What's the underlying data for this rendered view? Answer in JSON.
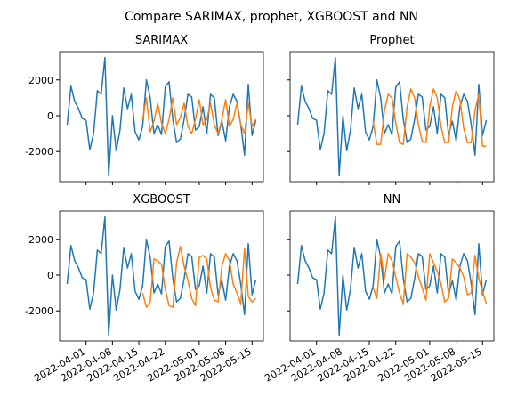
{
  "title": "Compare SARIMAX, prophet, XGBOOST and NN",
  "chart_data": [
    {
      "type": "line",
      "title": "SARIMAX",
      "x": [
        "2022-03-27",
        "2022-03-28",
        "2022-03-29",
        "2022-03-30",
        "2022-03-31",
        "2022-04-01",
        "2022-04-02",
        "2022-04-03",
        "2022-04-04",
        "2022-04-05",
        "2022-04-06",
        "2022-04-07",
        "2022-04-08",
        "2022-04-09",
        "2022-04-10",
        "2022-04-11",
        "2022-04-12",
        "2022-04-13",
        "2022-04-14",
        "2022-04-15",
        "2022-04-16",
        "2022-04-17",
        "2022-04-18",
        "2022-04-19",
        "2022-04-20",
        "2022-04-21",
        "2022-04-22",
        "2022-04-23",
        "2022-04-24",
        "2022-04-25",
        "2022-04-26",
        "2022-04-27",
        "2022-04-28",
        "2022-04-29",
        "2022-04-30",
        "2022-05-01",
        "2022-05-02",
        "2022-05-03",
        "2022-05-04",
        "2022-05-05",
        "2022-05-06",
        "2022-05-07",
        "2022-05-08",
        "2022-05-09",
        "2022-05-10",
        "2022-05-11",
        "2022-05-12",
        "2022-05-13",
        "2022-05-14",
        "2022-05-15",
        "2022-05-16"
      ],
      "series": [
        {
          "color": "#1f77b4",
          "values": [
            -500,
            1650,
            800,
            400,
            -150,
            -250,
            -1900,
            -1000,
            1400,
            1200,
            3250,
            -3350,
            0,
            -1950,
            -800,
            1550,
            400,
            1200,
            -900,
            -1350,
            -600,
            2000,
            1000,
            -1000,
            -500,
            -1050,
            1600,
            1900,
            -200,
            -1500,
            -1300,
            -200,
            1200,
            1050,
            -800,
            -600,
            500,
            -1000,
            1200,
            1000,
            -1100,
            -300,
            -1400,
            500,
            1200,
            800,
            -500,
            -2200,
            1750,
            -1100,
            -250
          ]
        },
        {
          "color": "#ff7f0e",
          "values": [
            null,
            null,
            null,
            null,
            null,
            null,
            null,
            null,
            null,
            null,
            null,
            null,
            null,
            null,
            null,
            null,
            null,
            null,
            null,
            null,
            -200,
            1000,
            -900,
            -300,
            700,
            -400,
            -1000,
            -200,
            1000,
            -500,
            -100,
            700,
            -600,
            -1000,
            -200,
            900,
            -500,
            -200,
            700,
            -500,
            -1000,
            -200,
            900,
            -600,
            -200,
            700,
            -500,
            -1000,
            700,
            -600,
            -200
          ]
        }
      ],
      "xlim": [
        "2022-03-25",
        "2022-05-18"
      ],
      "xticks": [
        "2022-04-01",
        "2022-04-08",
        "2022-04-15",
        "2022-04-22",
        "2022-05-01",
        "2022-05-08",
        "2022-05-15"
      ],
      "ylim": [
        -3680,
        3580
      ],
      "yticks": [
        -2000,
        0,
        2000
      ]
    },
    {
      "type": "line",
      "title": "Prophet",
      "x": [
        "2022-03-27",
        "2022-03-28",
        "2022-03-29",
        "2022-03-30",
        "2022-03-31",
        "2022-04-01",
        "2022-04-02",
        "2022-04-03",
        "2022-04-04",
        "2022-04-05",
        "2022-04-06",
        "2022-04-07",
        "2022-04-08",
        "2022-04-09",
        "2022-04-10",
        "2022-04-11",
        "2022-04-12",
        "2022-04-13",
        "2022-04-14",
        "2022-04-15",
        "2022-04-16",
        "2022-04-17",
        "2022-04-18",
        "2022-04-19",
        "2022-04-20",
        "2022-04-21",
        "2022-04-22",
        "2022-04-23",
        "2022-04-24",
        "2022-04-25",
        "2022-04-26",
        "2022-04-27",
        "2022-04-28",
        "2022-04-29",
        "2022-04-30",
        "2022-05-01",
        "2022-05-02",
        "2022-05-03",
        "2022-05-04",
        "2022-05-05",
        "2022-05-06",
        "2022-05-07",
        "2022-05-08",
        "2022-05-09",
        "2022-05-10",
        "2022-05-11",
        "2022-05-12",
        "2022-05-13",
        "2022-05-14",
        "2022-05-15",
        "2022-05-16"
      ],
      "series": [
        {
          "color": "#1f77b4",
          "values": [
            -500,
            1650,
            800,
            400,
            -150,
            -250,
            -1900,
            -1000,
            1400,
            1200,
            3250,
            -3350,
            0,
            -1950,
            -800,
            1550,
            400,
            1200,
            -900,
            -1350,
            -600,
            2000,
            1000,
            -1000,
            -500,
            -1050,
            1600,
            1900,
            -200,
            -1500,
            -1300,
            -200,
            1200,
            1050,
            -800,
            -600,
            500,
            -1000,
            1200,
            1000,
            -1100,
            -300,
            -1400,
            500,
            1200,
            800,
            -500,
            -2200,
            1750,
            -1100,
            -250
          ]
        },
        {
          "color": "#ff7f0e",
          "values": [
            null,
            null,
            null,
            null,
            null,
            null,
            null,
            null,
            null,
            null,
            null,
            null,
            null,
            null,
            null,
            null,
            null,
            null,
            null,
            null,
            -300,
            -1600,
            -1600,
            300,
            1200,
            1000,
            -400,
            -1500,
            -1600,
            500,
            1500,
            1000,
            -500,
            -1400,
            -1500,
            500,
            1500,
            1000,
            -600,
            -1500,
            -1500,
            500,
            1400,
            900,
            -700,
            -1500,
            -1500,
            300,
            1200,
            -1700,
            -1700
          ]
        }
      ],
      "xlim": [
        "2022-03-25",
        "2022-05-18"
      ],
      "xticks": [
        "2022-04-01",
        "2022-04-08",
        "2022-04-15",
        "2022-04-22",
        "2022-05-01",
        "2022-05-08",
        "2022-05-15"
      ],
      "ylim": [
        -3680,
        3580
      ],
      "yticks": [
        -2000,
        0,
        2000
      ]
    },
    {
      "type": "line",
      "title": "XGBOOST",
      "x": [
        "2022-03-27",
        "2022-03-28",
        "2022-03-29",
        "2022-03-30",
        "2022-03-31",
        "2022-04-01",
        "2022-04-02",
        "2022-04-03",
        "2022-04-04",
        "2022-04-05",
        "2022-04-06",
        "2022-04-07",
        "2022-04-08",
        "2022-04-09",
        "2022-04-10",
        "2022-04-11",
        "2022-04-12",
        "2022-04-13",
        "2022-04-14",
        "2022-04-15",
        "2022-04-16",
        "2022-04-17",
        "2022-04-18",
        "2022-04-19",
        "2022-04-20",
        "2022-04-21",
        "2022-04-22",
        "2022-04-23",
        "2022-04-24",
        "2022-04-25",
        "2022-04-26",
        "2022-04-27",
        "2022-04-28",
        "2022-04-29",
        "2022-04-30",
        "2022-05-01",
        "2022-05-02",
        "2022-05-03",
        "2022-05-04",
        "2022-05-05",
        "2022-05-06",
        "2022-05-07",
        "2022-05-08",
        "2022-05-09",
        "2022-05-10",
        "2022-05-11",
        "2022-05-12",
        "2022-05-13",
        "2022-05-14",
        "2022-05-15",
        "2022-05-16"
      ],
      "series": [
        {
          "color": "#1f77b4",
          "values": [
            -500,
            1650,
            800,
            400,
            -150,
            -250,
            -1900,
            -1000,
            1400,
            1200,
            3250,
            -3350,
            0,
            -1950,
            -800,
            1550,
            400,
            1200,
            -900,
            -1350,
            -600,
            2000,
            1000,
            -1000,
            -500,
            -1050,
            1600,
            1900,
            -200,
            -1500,
            -1300,
            -200,
            1200,
            1050,
            -800,
            -600,
            500,
            -1000,
            1200,
            1000,
            -1100,
            -300,
            -1400,
            500,
            1200,
            800,
            -500,
            -2200,
            1750,
            -1100,
            -250
          ]
        },
        {
          "color": "#ff7f0e",
          "values": [
            null,
            null,
            null,
            null,
            null,
            null,
            null,
            null,
            null,
            null,
            null,
            null,
            null,
            null,
            null,
            null,
            null,
            null,
            null,
            null,
            -1000,
            -1800,
            -1500,
            900,
            800,
            600,
            -800,
            -1700,
            -1800,
            700,
            1600,
            500,
            -300,
            -1300,
            -1700,
            1000,
            1100,
            900,
            -700,
            -1400,
            -1500,
            500,
            1200,
            800,
            -500,
            -1000,
            -1600,
            1500,
            -1200,
            -1500,
            -1300
          ]
        }
      ],
      "xlim": [
        "2022-03-25",
        "2022-05-18"
      ],
      "xticks": [
        "2022-04-01",
        "2022-04-08",
        "2022-04-15",
        "2022-04-22",
        "2022-05-01",
        "2022-05-08",
        "2022-05-15"
      ],
      "ylim": [
        -3680,
        3580
      ],
      "yticks": [
        -2000,
        0,
        2000
      ]
    },
    {
      "type": "line",
      "title": "NN",
      "x": [
        "2022-03-27",
        "2022-03-28",
        "2022-03-29",
        "2022-03-30",
        "2022-03-31",
        "2022-04-01",
        "2022-04-02",
        "2022-04-03",
        "2022-04-04",
        "2022-04-05",
        "2022-04-06",
        "2022-04-07",
        "2022-04-08",
        "2022-04-09",
        "2022-04-10",
        "2022-04-11",
        "2022-04-12",
        "2022-04-13",
        "2022-04-14",
        "2022-04-15",
        "2022-04-16",
        "2022-04-17",
        "2022-04-18",
        "2022-04-19",
        "2022-04-20",
        "2022-04-21",
        "2022-04-22",
        "2022-04-23",
        "2022-04-24",
        "2022-04-25",
        "2022-04-26",
        "2022-04-27",
        "2022-04-28",
        "2022-04-29",
        "2022-04-30",
        "2022-05-01",
        "2022-05-02",
        "2022-05-03",
        "2022-05-04",
        "2022-05-05",
        "2022-05-06",
        "2022-05-07",
        "2022-05-08",
        "2022-05-09",
        "2022-05-10",
        "2022-05-11",
        "2022-05-12",
        "2022-05-13",
        "2022-05-14",
        "2022-05-15",
        "2022-05-16"
      ],
      "series": [
        {
          "color": "#1f77b4",
          "values": [
            -500,
            1650,
            800,
            400,
            -150,
            -250,
            -1900,
            -1000,
            1400,
            1200,
            3250,
            -3350,
            0,
            -1950,
            -800,
            1550,
            400,
            1200,
            -900,
            -1350,
            -600,
            2000,
            1000,
            -1000,
            -500,
            -1050,
            1600,
            1900,
            -200,
            -1500,
            -1300,
            -200,
            1200,
            1050,
            -800,
            -600,
            500,
            -1000,
            1200,
            1000,
            -1100,
            -300,
            -1400,
            500,
            1200,
            800,
            -500,
            -2200,
            1750,
            -1100,
            -250
          ]
        },
        {
          "color": "#ff7f0e",
          "values": [
            null,
            null,
            null,
            null,
            null,
            null,
            null,
            null,
            null,
            null,
            null,
            null,
            null,
            null,
            null,
            null,
            null,
            null,
            null,
            null,
            -700,
            -1300,
            1200,
            -200,
            1200,
            800,
            -100,
            -1000,
            -1600,
            1200,
            1000,
            700,
            -100,
            -700,
            -1400,
            1200,
            700,
            200,
            -500,
            -1500,
            -1300,
            900,
            700,
            400,
            -100,
            -1100,
            -1000,
            1100,
            -200,
            -900,
            -1600
          ]
        }
      ],
      "xlim": [
        "2022-03-25",
        "2022-05-18"
      ],
      "xticks": [
        "2022-04-01",
        "2022-04-08",
        "2022-04-15",
        "2022-04-22",
        "2022-05-01",
        "2022-05-08",
        "2022-05-15"
      ],
      "ylim": [
        -3680,
        3580
      ],
      "yticks": [
        -2000,
        0,
        2000
      ]
    }
  ]
}
